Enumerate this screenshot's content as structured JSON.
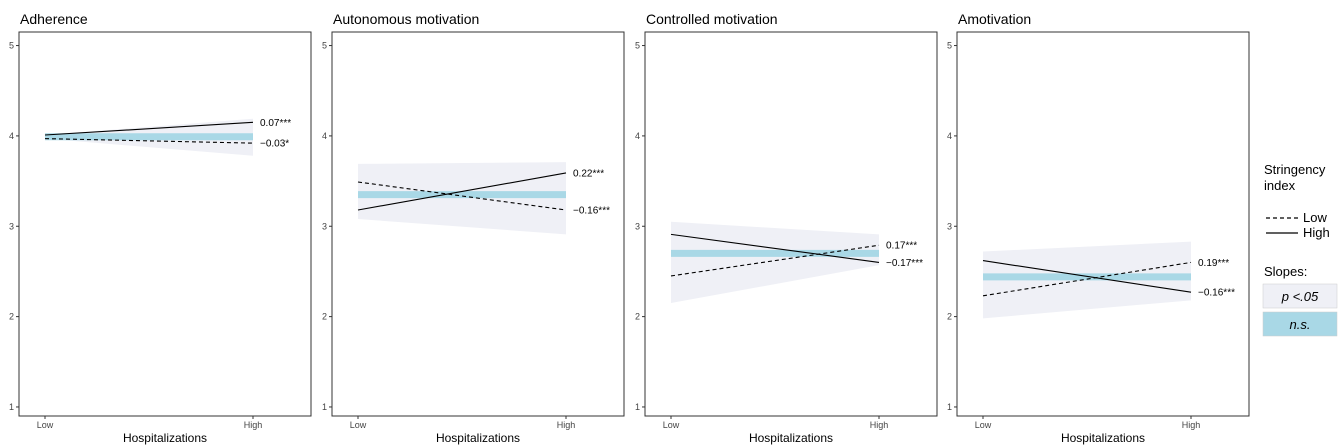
{
  "chart_data": [
    {
      "type": "line",
      "title": "Adherence",
      "xlabel": "Hospitalizations",
      "categories": [
        "Low",
        "High"
      ],
      "ylim": [
        0.9,
        5.15
      ],
      "yticks": [
        1,
        2,
        3,
        4,
        5
      ],
      "series": [
        {
          "name": "High",
          "values": [
            4.01,
            4.15
          ],
          "slope_label": "0.07***",
          "significant": true
        },
        {
          "name": "Low",
          "values": [
            3.97,
            3.92
          ],
          "slope_label": "−0.03*",
          "significant": true
        }
      ],
      "ci_band": {
        "low": [
          3.97,
          3.78
        ],
        "high": [
          4.01,
          4.19
        ]
      },
      "ns_band": {
        "values": [
          3.99,
          3.99
        ]
      }
    },
    {
      "type": "line",
      "title": "Autonomous motivation",
      "xlabel": "Hospitalizations",
      "categories": [
        "Low",
        "High"
      ],
      "ylim": [
        0.9,
        5.15
      ],
      "yticks": [
        1,
        2,
        3,
        4,
        5
      ],
      "series": [
        {
          "name": "High",
          "values": [
            3.18,
            3.59
          ],
          "slope_label": "0.22***",
          "significant": true
        },
        {
          "name": "Low",
          "values": [
            3.49,
            3.18
          ],
          "slope_label": "−0.16***",
          "significant": true
        }
      ],
      "ci_band": {
        "low": [
          3.08,
          2.91
        ],
        "high": [
          3.69,
          3.71
        ]
      },
      "ns_band": {
        "values": [
          3.35,
          3.35
        ]
      }
    },
    {
      "type": "line",
      "title": "Controlled motivation",
      "xlabel": "Hospitalizations",
      "categories": [
        "Low",
        "High"
      ],
      "ylim": [
        0.9,
        5.15
      ],
      "yticks": [
        1,
        2,
        3,
        4,
        5
      ],
      "series": [
        {
          "name": "High",
          "values": [
            2.91,
            2.6
          ],
          "slope_label": "−0.17***",
          "significant": true
        },
        {
          "name": "Low",
          "values": [
            2.45,
            2.79
          ],
          "slope_label": "0.17***",
          "significant": true
        }
      ],
      "ci_band": {
        "low": [
          2.15,
          2.57
        ],
        "high": [
          3.05,
          2.91
        ]
      },
      "ns_band": {
        "values": [
          2.7,
          2.7
        ]
      }
    },
    {
      "type": "line",
      "title": "Amotivation",
      "xlabel": "Hospitalizations",
      "categories": [
        "Low",
        "High"
      ],
      "ylim": [
        0.9,
        5.15
      ],
      "yticks": [
        1,
        2,
        3,
        4,
        5
      ],
      "series": [
        {
          "name": "High",
          "values": [
            2.62,
            2.27
          ],
          "slope_label": "−0.16***",
          "significant": true
        },
        {
          "name": "Low",
          "values": [
            2.23,
            2.6
          ],
          "slope_label": "0.19***",
          "significant": true
        }
      ],
      "ci_band": {
        "low": [
          1.98,
          2.18
        ],
        "high": [
          2.72,
          2.83
        ]
      },
      "ns_band": {
        "values": [
          2.44,
          2.44
        ]
      }
    }
  ],
  "legend": {
    "title_line1": "Stringency",
    "title_line2": "index",
    "items": [
      {
        "label": "Low",
        "dash": "dashed"
      },
      {
        "label": "High",
        "dash": "solid"
      }
    ],
    "slopes_title": "Slopes:",
    "slopes": [
      {
        "label": "p <.05",
        "color": "#eff0f6"
      },
      {
        "label": "n.s.",
        "color": "#a9d8e6"
      }
    ]
  },
  "colors": {
    "ci_band": "#eff0f6",
    "ns_band": "#a9d8e6",
    "line": "#000000",
    "panel_border": "#333333"
  }
}
